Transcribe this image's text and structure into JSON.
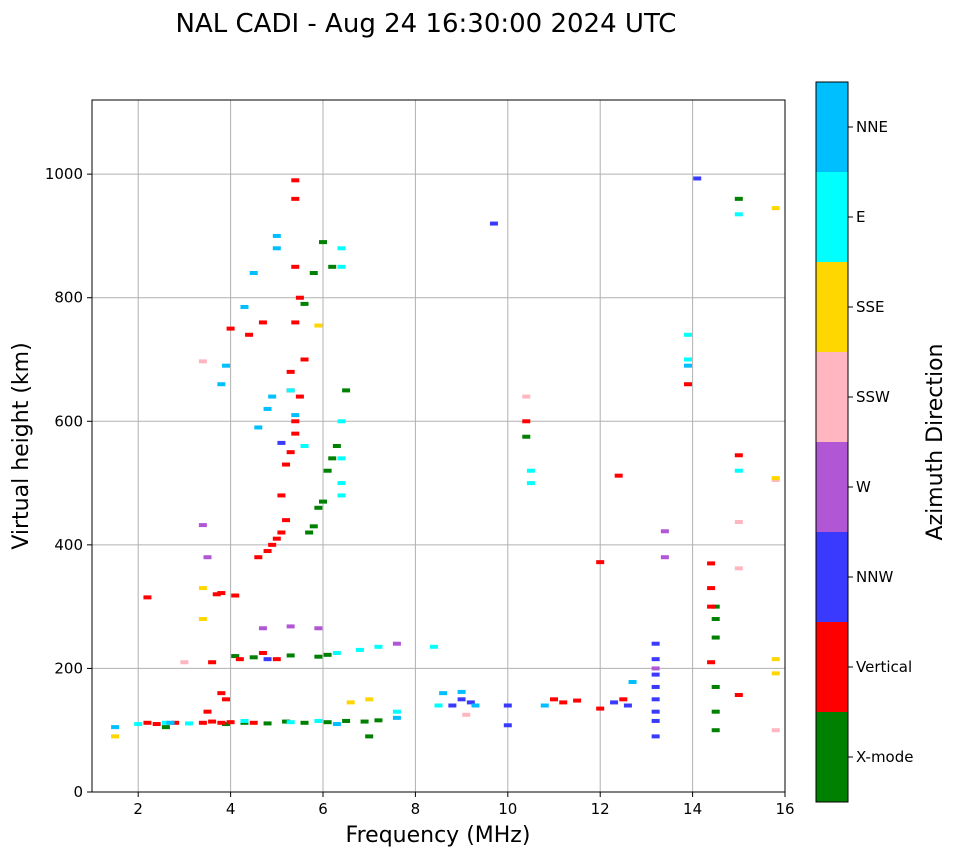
{
  "chart_data": {
    "type": "scatter",
    "title": "NAL CADI - Aug 24 16:30:00 2024 UTC",
    "xlabel": "Frequency (MHz)",
    "ylabel": "Virtual height (km)",
    "xlim": [
      1,
      16
    ],
    "ylim": [
      0,
      1120
    ],
    "xticks": [
      "2",
      "4",
      "6",
      "8",
      "10",
      "12",
      "14",
      "16"
    ],
    "yticks": [
      "0",
      "200",
      "400",
      "600",
      "800",
      "1000"
    ],
    "grid": true,
    "colorbar": {
      "title": "Azimuth Direction",
      "labels": [
        "X-mode",
        "Vertical",
        "NNW",
        "W",
        "SSW",
        "SSE",
        "E",
        "NNE"
      ],
      "colors": [
        "#008000",
        "#ff0000",
        "#3a3aff",
        "#b157d6",
        "#ffb6c1",
        "#ffd700",
        "#00ffff",
        "#00bfff"
      ]
    },
    "series": [
      {
        "name": "X-mode",
        "points": [
          [
            3.9,
            110
          ],
          [
            4.3,
            112
          ],
          [
            4.8,
            111
          ],
          [
            5.2,
            114
          ],
          [
            5.6,
            112
          ],
          [
            6.1,
            113
          ],
          [
            6.5,
            115
          ],
          [
            6.9,
            114
          ],
          [
            7.2,
            116
          ],
          [
            7.0,
            90
          ],
          [
            4.1,
            220
          ],
          [
            4.5,
            218
          ],
          [
            5.3,
            221
          ],
          [
            5.9,
            219
          ],
          [
            6.1,
            222
          ],
          [
            5.7,
            420
          ],
          [
            5.8,
            430
          ],
          [
            5.9,
            460
          ],
          [
            6.0,
            470
          ],
          [
            6.1,
            520
          ],
          [
            6.2,
            540
          ],
          [
            6.3,
            560
          ],
          [
            6.5,
            650
          ],
          [
            6.0,
            890
          ],
          [
            5.8,
            840
          ],
          [
            5.6,
            790
          ],
          [
            6.2,
            850
          ],
          [
            10.4,
            575
          ],
          [
            14.5,
            100
          ],
          [
            14.5,
            130
          ],
          [
            14.5,
            170
          ],
          [
            14.5,
            250
          ],
          [
            14.5,
            280
          ],
          [
            14.5,
            300
          ],
          [
            15.0,
            960
          ],
          [
            2.6,
            105
          ]
        ]
      },
      {
        "name": "Vertical",
        "points": [
          [
            2.2,
            112
          ],
          [
            2.4,
            110
          ],
          [
            2.8,
            112
          ],
          [
            3.4,
            112
          ],
          [
            3.6,
            114
          ],
          [
            3.8,
            112
          ],
          [
            4.0,
            113
          ],
          [
            4.5,
            112
          ],
          [
            3.5,
            130
          ],
          [
            3.8,
            160
          ],
          [
            3.9,
            150
          ],
          [
            3.7,
            320
          ],
          [
            3.8,
            322
          ],
          [
            4.1,
            318
          ],
          [
            3.6,
            210
          ],
          [
            4.2,
            215
          ],
          [
            4.7,
            225
          ],
          [
            5.0,
            215
          ],
          [
            4.6,
            380
          ],
          [
            4.8,
            390
          ],
          [
            4.9,
            400
          ],
          [
            5.0,
            410
          ],
          [
            5.1,
            420
          ],
          [
            5.2,
            440
          ],
          [
            5.1,
            480
          ],
          [
            5.2,
            530
          ],
          [
            5.3,
            550
          ],
          [
            5.4,
            580
          ],
          [
            5.4,
            600
          ],
          [
            5.5,
            640
          ],
          [
            5.6,
            700
          ],
          [
            5.4,
            760
          ],
          [
            5.5,
            800
          ],
          [
            5.4,
            850
          ],
          [
            5.4,
            960
          ],
          [
            5.4,
            990
          ],
          [
            4.7,
            760
          ],
          [
            4.4,
            740
          ],
          [
            4.0,
            750
          ],
          [
            5.3,
            680
          ],
          [
            5.3,
            650
          ],
          [
            2.2,
            315
          ],
          [
            10.4,
            600
          ],
          [
            11.0,
            150
          ],
          [
            11.2,
            145
          ],
          [
            11.5,
            148
          ],
          [
            12.0,
            135
          ],
          [
            12.0,
            372
          ],
          [
            12.4,
            512
          ],
          [
            12.5,
            150
          ],
          [
            13.9,
            660
          ],
          [
            14.4,
            370
          ],
          [
            14.4,
            330
          ],
          [
            14.4,
            300
          ],
          [
            14.4,
            210
          ],
          [
            15.0,
            545
          ],
          [
            15.0,
            157
          ]
        ]
      },
      {
        "name": "NNW",
        "points": [
          [
            8.8,
            140
          ],
          [
            9.0,
            150
          ],
          [
            9.2,
            145
          ],
          [
            9.7,
            920
          ],
          [
            10.0,
            108
          ],
          [
            10.0,
            140
          ],
          [
            12.3,
            145
          ],
          [
            12.6,
            140
          ],
          [
            13.2,
            115
          ],
          [
            13.2,
            130
          ],
          [
            13.2,
            150
          ],
          [
            13.2,
            170
          ],
          [
            13.2,
            190
          ],
          [
            13.2,
            215
          ],
          [
            13.2,
            240
          ],
          [
            13.2,
            90
          ],
          [
            14.1,
            993
          ],
          [
            5.1,
            565
          ],
          [
            4.8,
            215
          ]
        ]
      },
      {
        "name": "W",
        "points": [
          [
            3.4,
            432
          ],
          [
            13.4,
            422
          ],
          [
            13.4,
            380
          ],
          [
            13.2,
            200
          ],
          [
            7.6,
            240
          ],
          [
            4.7,
            265
          ],
          [
            5.3,
            268
          ],
          [
            5.9,
            265
          ],
          [
            3.5,
            380
          ]
        ]
      },
      {
        "name": "SSW",
        "points": [
          [
            3.4,
            697
          ],
          [
            9.1,
            125
          ],
          [
            10.4,
            640
          ],
          [
            15.0,
            437
          ],
          [
            15.0,
            362
          ],
          [
            15.8,
            100
          ],
          [
            15.8,
            505
          ],
          [
            3.0,
            210
          ]
        ]
      },
      {
        "name": "SSE",
        "points": [
          [
            1.5,
            90
          ],
          [
            6.6,
            145
          ],
          [
            7.0,
            150
          ],
          [
            5.9,
            755
          ],
          [
            15.8,
            945
          ],
          [
            15.8,
            215
          ],
          [
            15.8,
            192
          ],
          [
            15.8,
            508
          ],
          [
            3.4,
            280
          ],
          [
            3.4,
            330
          ]
        ]
      },
      {
        "name": "E",
        "points": [
          [
            2.0,
            110
          ],
          [
            2.6,
            112
          ],
          [
            3.1,
            111
          ],
          [
            4.3,
            115
          ],
          [
            5.3,
            113
          ],
          [
            5.9,
            115
          ],
          [
            6.3,
            225
          ],
          [
            6.8,
            230
          ],
          [
            7.2,
            235
          ],
          [
            7.6,
            130
          ],
          [
            8.5,
            140
          ],
          [
            8.4,
            235
          ],
          [
            10.5,
            520
          ],
          [
            10.5,
            500
          ],
          [
            13.9,
            700
          ],
          [
            13.9,
            740
          ],
          [
            15.0,
            935
          ],
          [
            15.0,
            520
          ],
          [
            6.4,
            880
          ],
          [
            6.4,
            850
          ],
          [
            6.4,
            600
          ],
          [
            6.4,
            540
          ],
          [
            6.4,
            500
          ],
          [
            6.4,
            480
          ],
          [
            5.6,
            560
          ],
          [
            5.3,
            650
          ]
        ]
      },
      {
        "name": "NNE",
        "points": [
          [
            1.5,
            105
          ],
          [
            2.7,
            112
          ],
          [
            3.8,
            660
          ],
          [
            3.9,
            690
          ],
          [
            4.3,
            785
          ],
          [
            4.5,
            840
          ],
          [
            5.0,
            900
          ],
          [
            5.0,
            880
          ],
          [
            4.9,
            640
          ],
          [
            4.8,
            620
          ],
          [
            8.6,
            160
          ],
          [
            9.0,
            162
          ],
          [
            9.3,
            140
          ],
          [
            10.8,
            140
          ],
          [
            12.7,
            178
          ],
          [
            13.9,
            690
          ],
          [
            6.3,
            110
          ],
          [
            7.6,
            120
          ],
          [
            4.6,
            590
          ],
          [
            5.4,
            610
          ]
        ]
      }
    ]
  }
}
